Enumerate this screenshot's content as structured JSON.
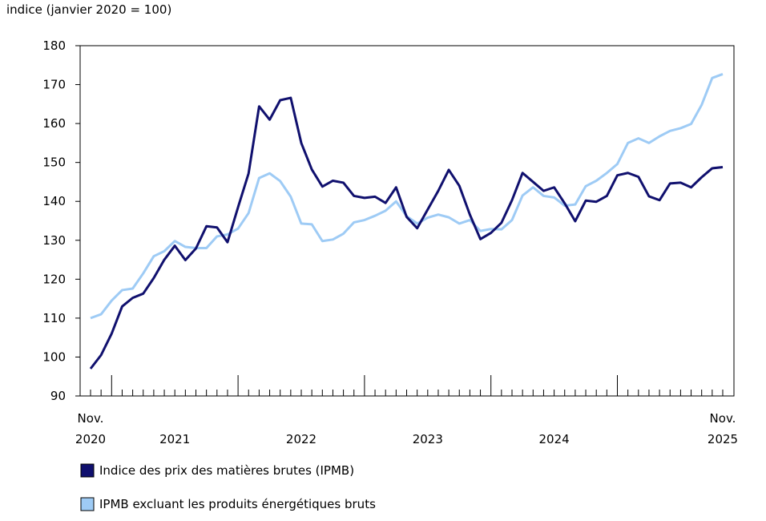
{
  "chart_data": {
    "type": "line",
    "y_label": "indice (janvier 2020 = 100)",
    "categories": [
      "Nov. 2020",
      null,
      null,
      null,
      null,
      null,
      null,
      null,
      "2021",
      null,
      null,
      null,
      null,
      null,
      null,
      null,
      null,
      null,
      null,
      null,
      "2022",
      null,
      null,
      null,
      null,
      null,
      null,
      null,
      null,
      null,
      null,
      null,
      "2023",
      null,
      null,
      null,
      null,
      null,
      null,
      null,
      null,
      null,
      null,
      null,
      "2024",
      null,
      null,
      null,
      null,
      null,
      null,
      null,
      null,
      null,
      null,
      null,
      null,
      null,
      null,
      null,
      "Nov. 2025"
    ],
    "series": [
      {
        "name": "Indice des prix des matières brutes (IPMB)",
        "color": "#10106e",
        "values": [
          97,
          100.5,
          106,
          113,
          115.2,
          116.3,
          120.3,
          125,
          128.6,
          124.9,
          127.9,
          133.6,
          133.3,
          129.5,
          138.5,
          147.2,
          164.4,
          161,
          166,
          166.6,
          155,
          148.2,
          143.8,
          145.3,
          144.8,
          141.4,
          140.9,
          141.2,
          139.6,
          143.6,
          136,
          133.1,
          137.9,
          142.7,
          148.1,
          144,
          136.6,
          130.3,
          131.9,
          134.5,
          140.3,
          147.3,
          145,
          142.7,
          143.6,
          139.5,
          134.9,
          140.2,
          139.9,
          141.4,
          146.7,
          147.3,
          146.3,
          141.3,
          140.3,
          144.6,
          144.8,
          143.6,
          146.2,
          148.5,
          148.8
        ]
      },
      {
        "name": "IPMB excluant les produits énergétiques bruts",
        "color": "#9ecbf5",
        "values": [
          110,
          111,
          114.5,
          117.2,
          117.6,
          121.5,
          125.9,
          127.2,
          129.8,
          128.3,
          128,
          128,
          131,
          131.5,
          133,
          137,
          146,
          147.2,
          145.2,
          141.2,
          134.3,
          134.1,
          129.8,
          130.2,
          131.7,
          134.6,
          135.2,
          136.3,
          137.6,
          140,
          136.2,
          134.3,
          135.8,
          136.6,
          135.9,
          134.3,
          135.2,
          132.4,
          132.9,
          132.8,
          135.2,
          141.5,
          143.6,
          141.4,
          141,
          138.9,
          139.2,
          143.9,
          145.3,
          147.3,
          149.6,
          155,
          156.2,
          155,
          156.7,
          158.1,
          158.8,
          159.9,
          164.8,
          171.7,
          172.7
        ]
      }
    ],
    "ylim": [
      90,
      180
    ],
    "yticks": [
      90,
      100,
      110,
      120,
      130,
      140,
      150,
      160,
      170,
      180
    ]
  }
}
